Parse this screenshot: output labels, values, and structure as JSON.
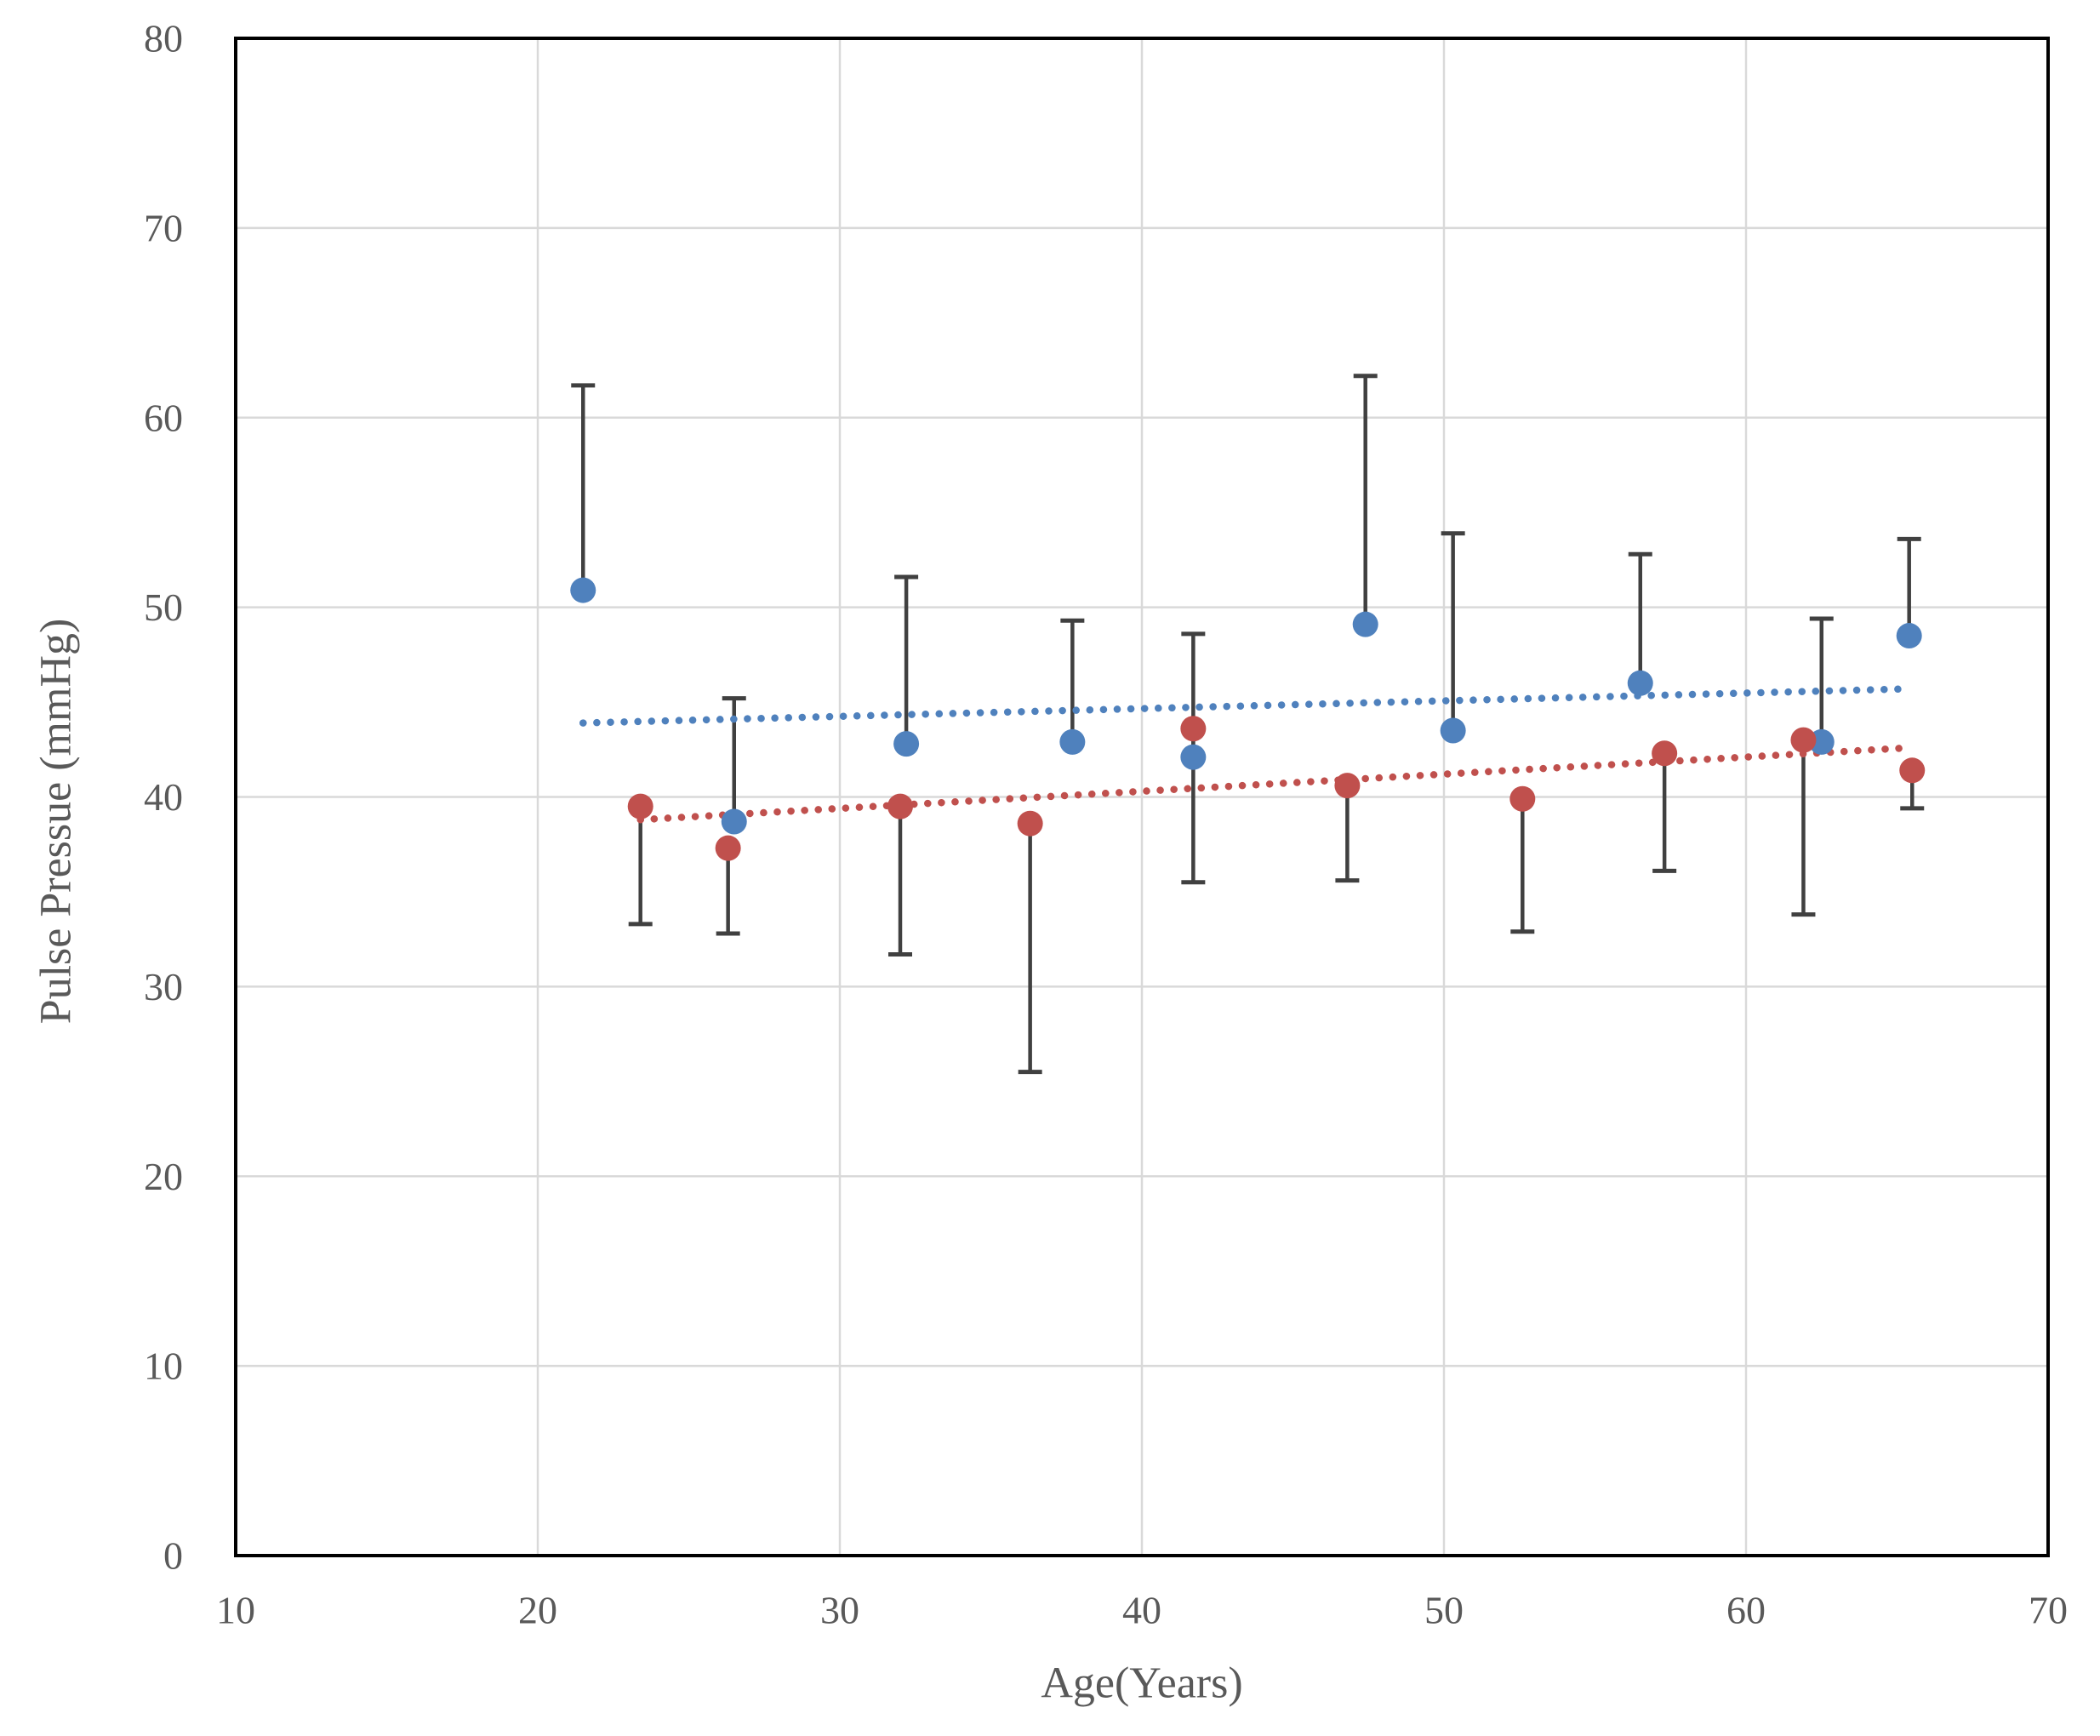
{
  "chart_data": {
    "type": "scatter",
    "title": "",
    "xlabel": "Age(Years)",
    "ylabel": "Pulse Pressue (mmHg)",
    "x_axis": {
      "min": 10,
      "max": 70,
      "step": 10,
      "ticks": [
        10,
        20,
        30,
        40,
        50,
        60,
        70
      ]
    },
    "y_axis": {
      "min": 0,
      "max": 80,
      "step": 10,
      "ticks": [
        0,
        10,
        20,
        30,
        40,
        50,
        60,
        70,
        80
      ]
    },
    "grid": true,
    "legend_position": "none",
    "colors": {
      "blue_series": "#4F81BD",
      "red_series": "#C0504D",
      "error_bar": "#404040",
      "gridline": "#D9D9D9",
      "axis_text": "#595959",
      "frame": "#000000",
      "background": "#FFFFFF"
    },
    "series": [
      {
        "key": "blue",
        "marker": "circle",
        "color_ref": "blue_series",
        "error_direction": "up",
        "points": [
          {
            "x": 21.5,
            "y": 50.9,
            "err_to": 61.7
          },
          {
            "x": 26.5,
            "y": 38.7,
            "err_to": 45.2
          },
          {
            "x": 32.2,
            "y": 42.8,
            "err_to": 51.6
          },
          {
            "x": 37.7,
            "y": 42.9,
            "err_to": 49.3
          },
          {
            "x": 41.7,
            "y": 42.1,
            "err_to": 48.6
          },
          {
            "x": 47.4,
            "y": 49.1,
            "err_to": 62.2
          },
          {
            "x": 50.3,
            "y": 43.5,
            "err_to": 53.9
          },
          {
            "x": 56.5,
            "y": 46.0,
            "err_to": 52.8
          },
          {
            "x": 62.5,
            "y": 42.9,
            "err_to": 49.4
          },
          {
            "x": 65.4,
            "y": 48.5,
            "err_to": 53.6
          }
        ],
        "trend": {
          "style": "dotted",
          "x1": 21.5,
          "y1": 43.9,
          "x2": 65.4,
          "y2": 45.7
        }
      },
      {
        "key": "red",
        "marker": "circle",
        "color_ref": "red_series",
        "error_direction": "down",
        "points": [
          {
            "x": 23.4,
            "y": 39.5,
            "err_to": 33.3
          },
          {
            "x": 26.3,
            "y": 37.3,
            "err_to": 32.8
          },
          {
            "x": 32.0,
            "y": 39.5,
            "err_to": 31.7
          },
          {
            "x": 36.3,
            "y": 38.6,
            "err_to": 25.5
          },
          {
            "x": 41.7,
            "y": 43.6,
            "err_to": 35.5
          },
          {
            "x": 46.8,
            "y": 40.6,
            "err_to": 35.6
          },
          {
            "x": 52.6,
            "y": 39.9,
            "err_to": 32.9
          },
          {
            "x": 57.3,
            "y": 42.3,
            "err_to": 36.1
          },
          {
            "x": 61.9,
            "y": 43.0,
            "err_to": 33.8
          },
          {
            "x": 65.5,
            "y": 41.4,
            "err_to": 39.4
          }
        ],
        "trend": {
          "style": "dotted",
          "x1": 23.4,
          "y1": 38.8,
          "x2": 65.5,
          "y2": 42.6
        }
      }
    ]
  }
}
